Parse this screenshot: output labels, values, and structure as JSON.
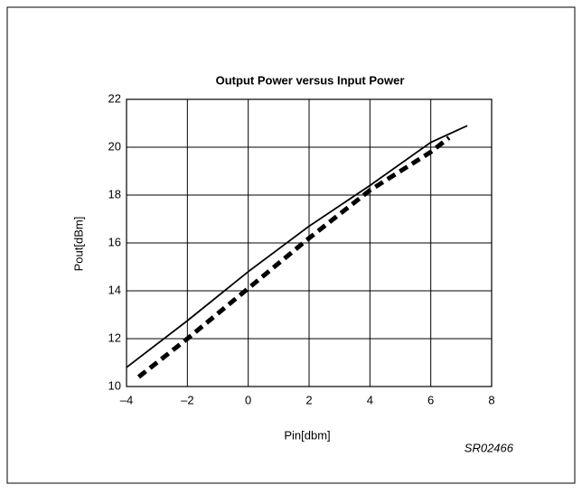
{
  "chart_data": {
    "type": "line",
    "title": "Output Power versus Input Power",
    "x_label": "Pin[dbm]",
    "y_label": "Pout[dBm]",
    "annotation": "SR02466",
    "xlim": [
      -4,
      8
    ],
    "xticks": [
      {
        "value": -4,
        "label": "–4"
      },
      {
        "value": -2,
        "label": "–2"
      },
      0,
      2,
      4,
      6,
      8
    ],
    "ylim": [
      10,
      22
    ],
    "yticks": [
      10,
      12,
      14,
      16,
      18,
      20,
      22
    ],
    "grid": true,
    "series": [
      {
        "color": "#000000",
        "style": "solid",
        "x": [
          -4,
          -2,
          0,
          2,
          4,
          6,
          7.2
        ],
        "values": [
          10.8,
          12.75,
          14.8,
          16.7,
          18.4,
          20.2,
          20.9
        ]
      },
      {
        "color": "#000000",
        "style": "dashed",
        "x": [
          -3.6,
          -2,
          0,
          2,
          4,
          6,
          6.6
        ],
        "values": [
          10.4,
          12.0,
          14.1,
          16.2,
          18.2,
          19.8,
          20.4
        ]
      }
    ]
  }
}
